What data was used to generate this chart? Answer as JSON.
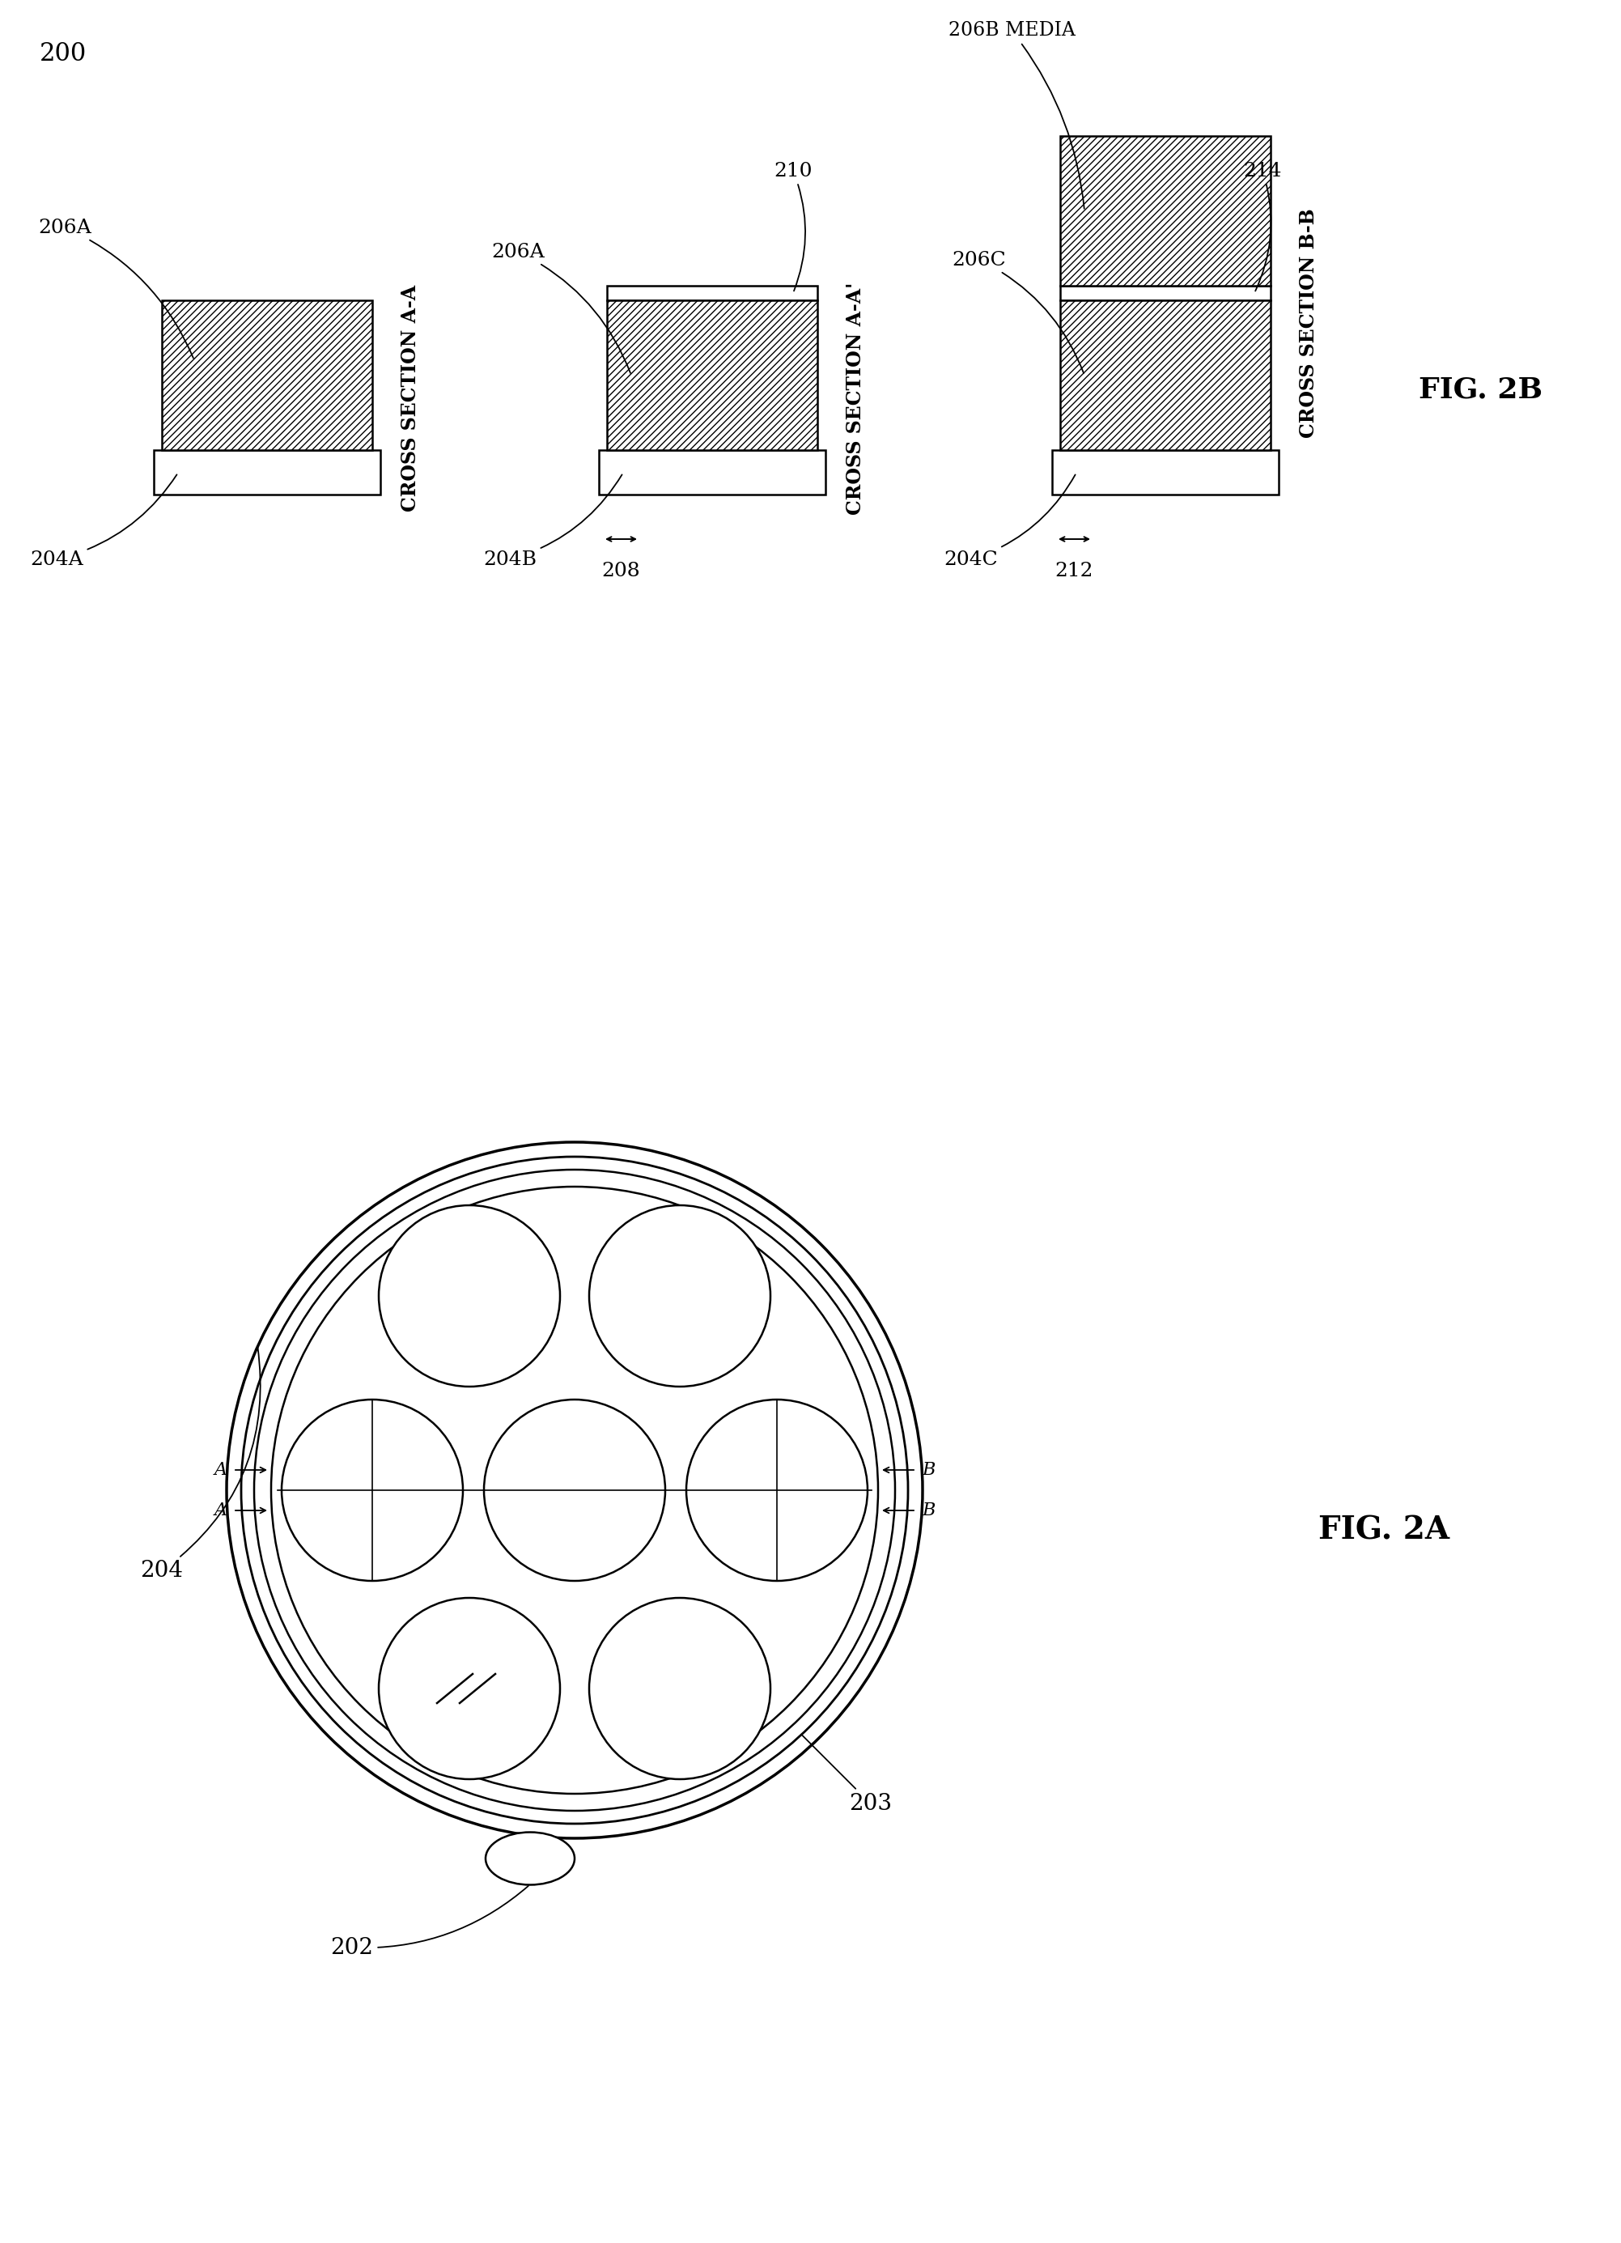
{
  "bg_color": "#ffffff",
  "line_color": "#000000",
  "label_200": "200",
  "label_202": "202",
  "label_203": "203",
  "label_204": "204",
  "label_204A": "204A",
  "label_204B": "204B",
  "label_204C": "204C",
  "label_206A": "206A",
  "label_206B_media": "206B MEDIA",
  "label_206C": "206C",
  "label_208": "208",
  "label_210": "210",
  "label_212": "212",
  "label_214": "214",
  "fig_label_2A": "FIG. 2A",
  "fig_label_2B": "FIG. 2B",
  "cross_section_AA": "Cross Section A-A",
  "cross_section_AA_prime": "Cross Section A-A'",
  "cross_section_BB": "Cross Section B-B"
}
